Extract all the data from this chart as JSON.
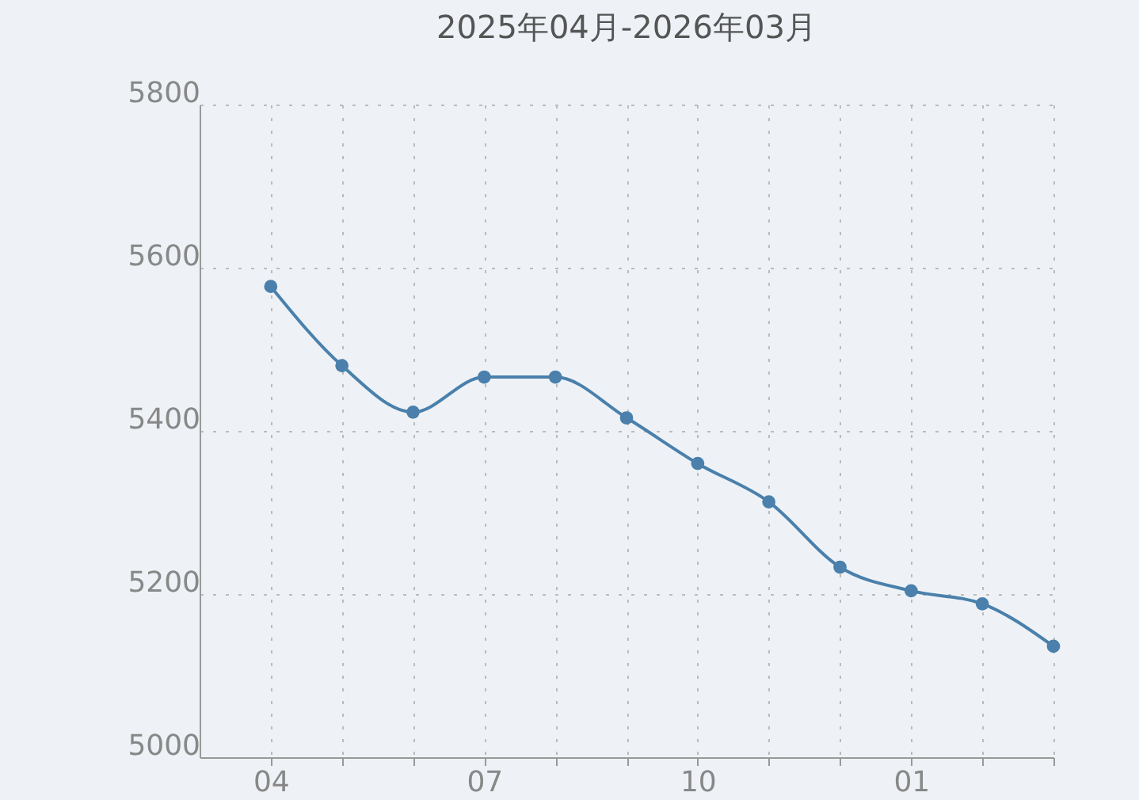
{
  "chart_data": {
    "type": "line",
    "title": "2025年04月-2026年03月",
    "categories": [
      "04",
      null,
      null,
      "07",
      null,
      null,
      "10",
      null,
      null,
      "01",
      null,
      null
    ],
    "series": [
      {
        "color": "#4a80ab",
        "values": [
          5577,
          5480,
          5423,
          5466,
          5466,
          5416,
          5360,
          5313,
          5233,
          5204,
          5188,
          5136
        ]
      }
    ],
    "ylim": [
      5000,
      5800
    ],
    "yticks": [
      5000,
      5200,
      5400,
      5600,
      5800
    ],
    "grid": true,
    "marker": "circle",
    "line_style": "solid"
  }
}
